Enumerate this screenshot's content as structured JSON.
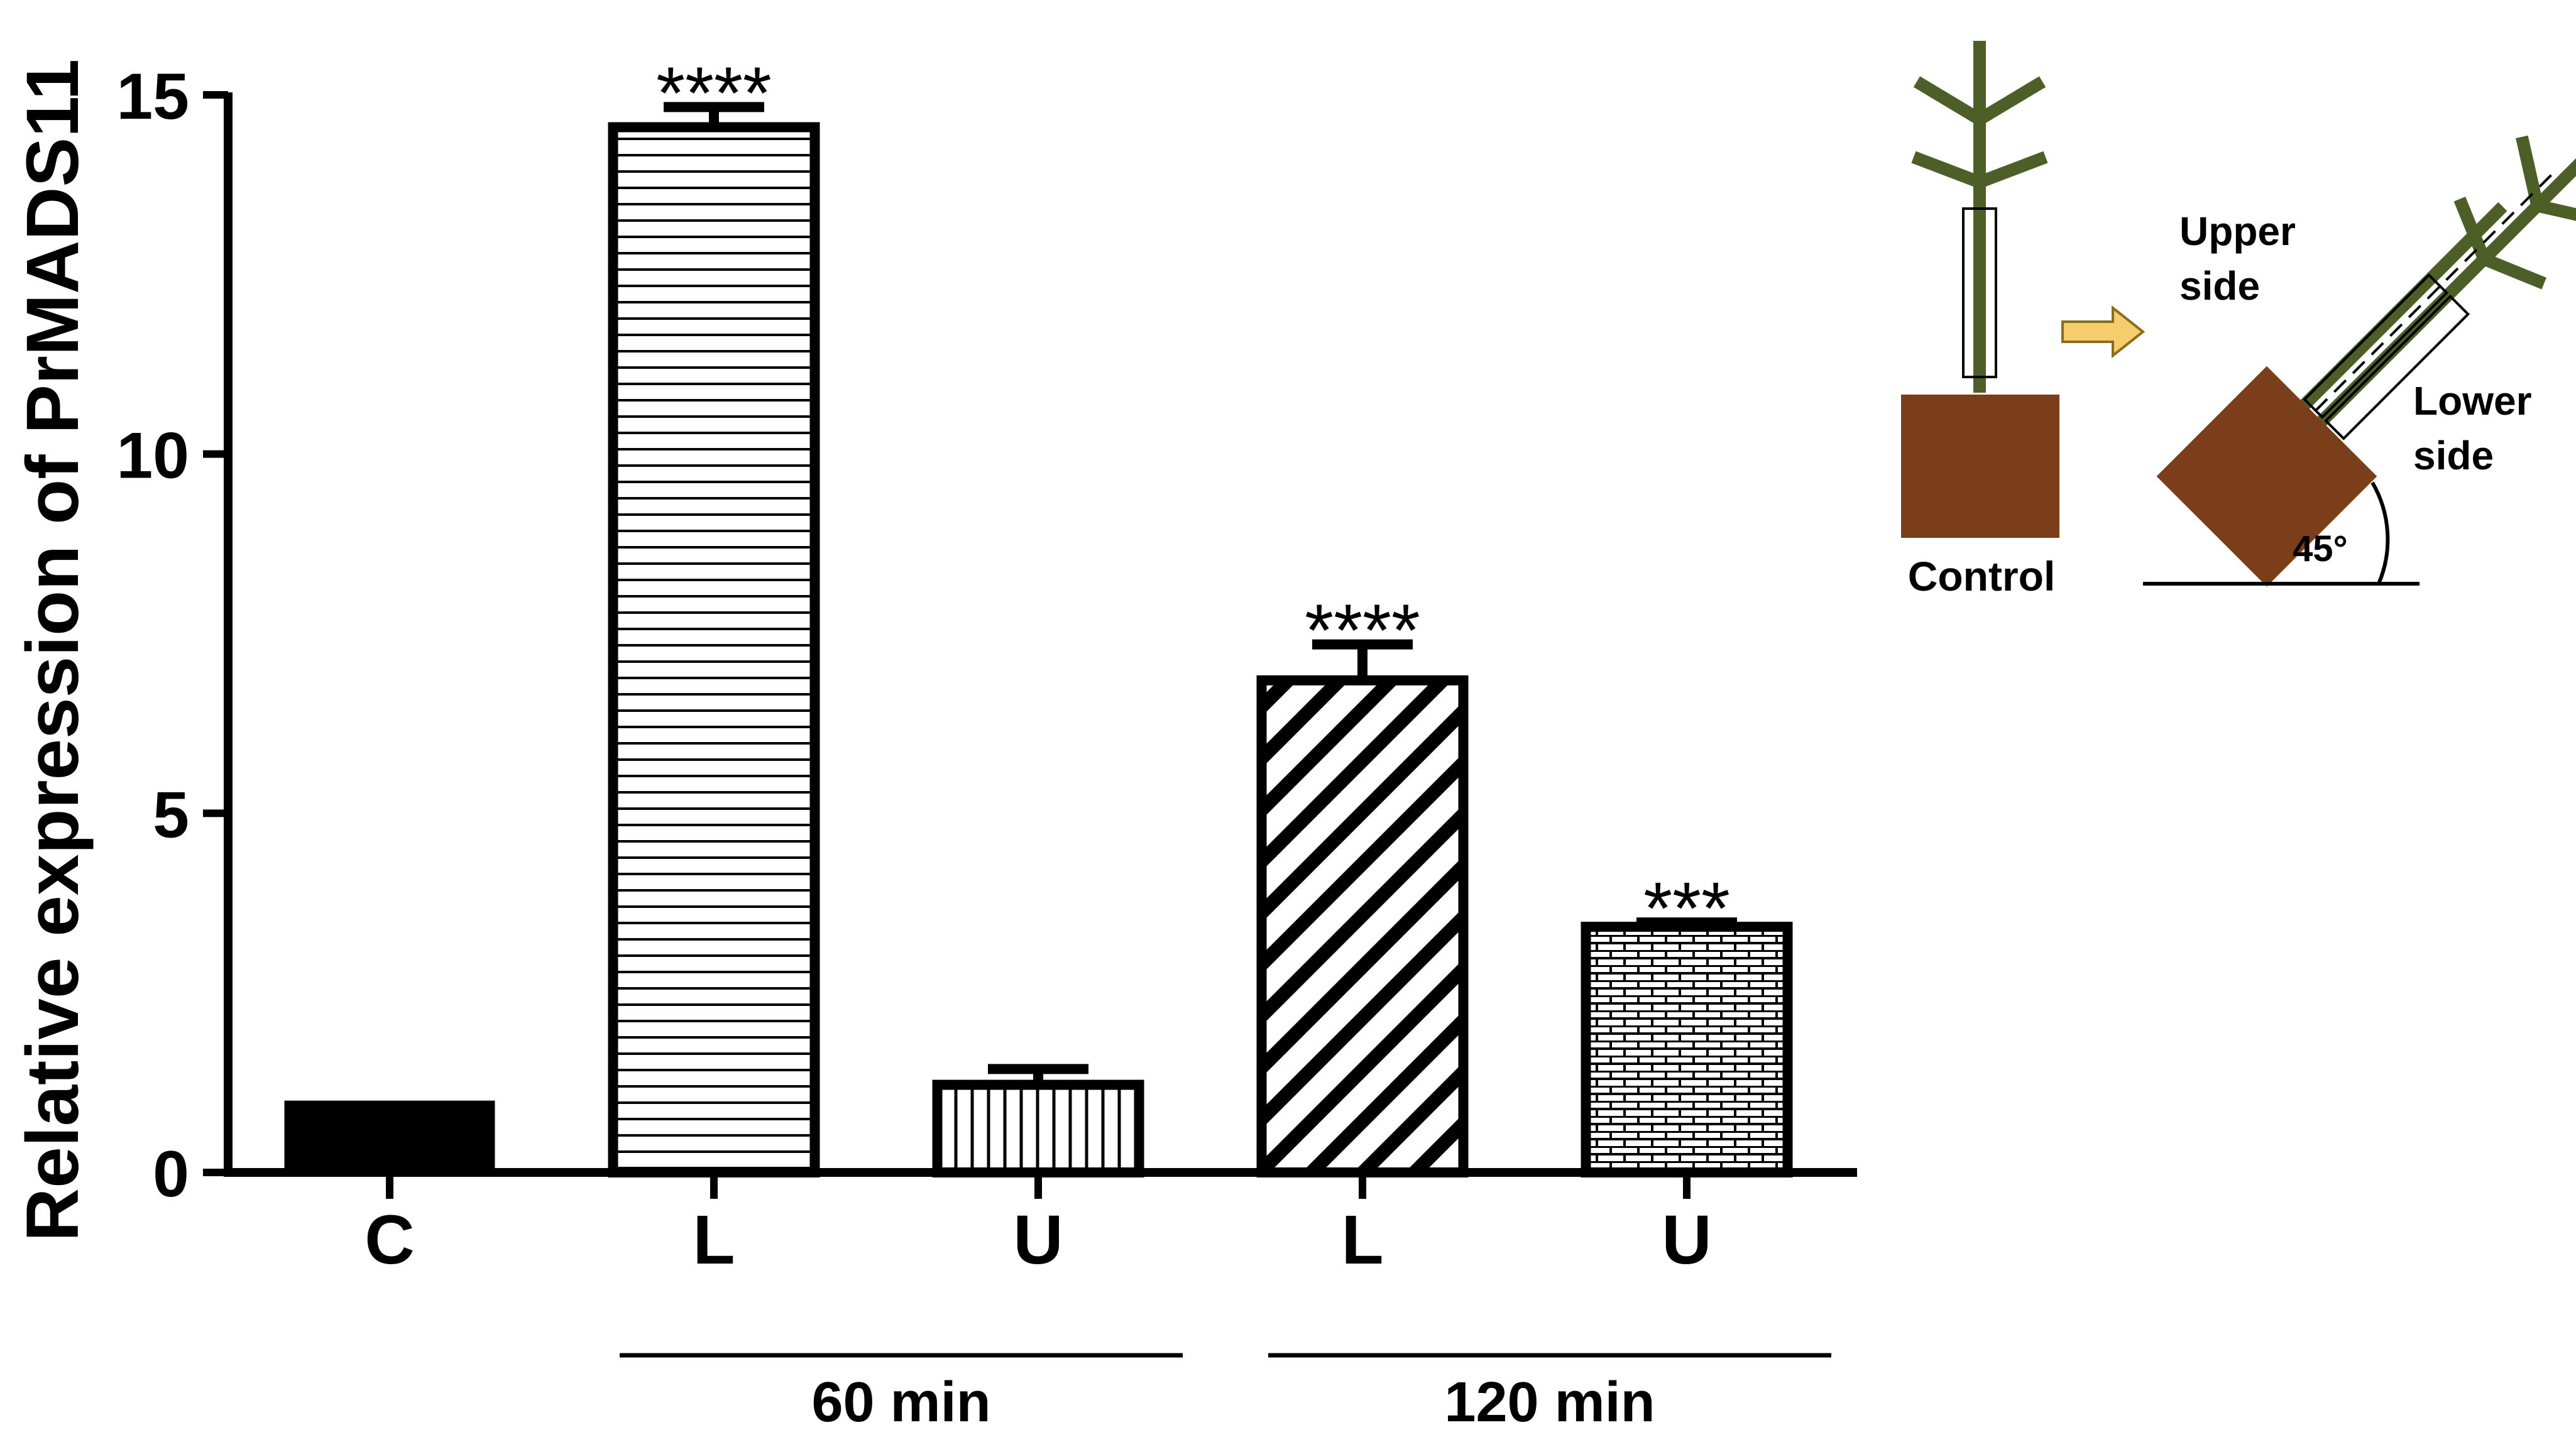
{
  "chart_data": {
    "type": "bar",
    "ylabel": "Relative expression of PrMADS11",
    "ylim": [
      0,
      15
    ],
    "yticks": [
      0,
      5,
      10,
      15
    ],
    "grid": false,
    "categories": [
      "C",
      "L",
      "U",
      "L",
      "U"
    ],
    "values": [
      1.0,
      14.55,
      1.22,
      6.85,
      3.42
    ],
    "errors": [
      0.0,
      0.28,
      0.22,
      0.5,
      0.06
    ],
    "significance": [
      "",
      "****",
      "",
      "****",
      "***"
    ],
    "patterns": [
      "solid",
      "horizontal",
      "vertical",
      "diagonal",
      "brick"
    ],
    "groups": [
      {
        "label": "60 min",
        "categories": [
          1,
          2
        ]
      },
      {
        "label": "120 min",
        "categories": [
          3,
          4
        ]
      }
    ]
  },
  "inset": {
    "control_label": "Control",
    "upper_label_line1": "Upper",
    "upper_label_line2": "side",
    "lower_label_line1": "Lower",
    "lower_label_line2": "side",
    "angle_label": "45°",
    "colors": {
      "pot": "#7a3e1b",
      "plant": "#4d5e26",
      "arrow": "#f6cd6c",
      "arrow_outline": "#8a6d1e"
    }
  }
}
